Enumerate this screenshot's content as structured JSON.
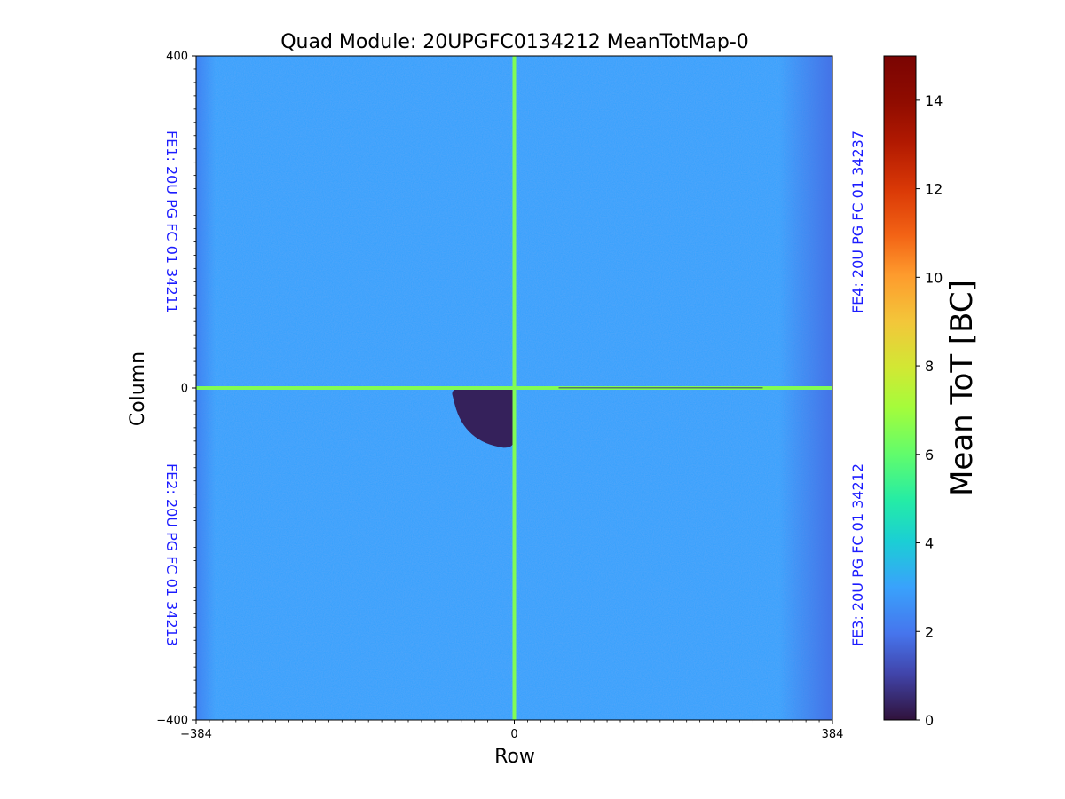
{
  "chart_data": {
    "type": "heatmap",
    "title": "Quad Module: 20UPGFC0134212 MeanTotMap-0",
    "xlabel": "Row",
    "ylabel": "Column",
    "xlim": [
      -384,
      384
    ],
    "ylim": [
      -400,
      400
    ],
    "x_ticks": [
      {
        "value": -384,
        "label": "−384"
      },
      {
        "value": 0,
        "label": "0"
      },
      {
        "value": 384,
        "label": "384"
      }
    ],
    "y_ticks": [
      {
        "value": 400,
        "label": "400"
      },
      {
        "value": 0,
        "label": "0"
      },
      {
        "value": -400,
        "label": "−400"
      }
    ],
    "colorbar": {
      "label": "Mean ToT [BC]",
      "range": [
        0,
        15
      ],
      "ticks": [
        {
          "value": 0,
          "label": "0"
        },
        {
          "value": 2,
          "label": "2"
        },
        {
          "value": 4,
          "label": "4"
        },
        {
          "value": 6,
          "label": "6"
        },
        {
          "value": 8,
          "label": "8"
        },
        {
          "value": 10,
          "label": "10"
        },
        {
          "value": 12,
          "label": "12"
        },
        {
          "value": 14,
          "label": "14"
        }
      ],
      "colormap": "turbo"
    },
    "background_value": 3.0,
    "chip_labels": [
      {
        "id": "fe1",
        "text": "FE1: 20U PG FC 01 34211",
        "side": "left",
        "quadrant": "top"
      },
      {
        "id": "fe2",
        "text": "FE2: 20U PG FC 01 34213",
        "side": "left",
        "quadrant": "bottom"
      },
      {
        "id": "fe3",
        "text": "FE3: 20U PG FC 01 34212",
        "side": "right",
        "quadrant": "bottom"
      },
      {
        "id": "fe4",
        "text": "FE4: 20U PG FC 01 34237",
        "side": "right",
        "quadrant": "top"
      }
    ],
    "boundary_lines": {
      "x": 0,
      "y": 0,
      "value": 6.5
    },
    "low_region": {
      "value": 0.3,
      "x_range": [
        -75,
        0
      ],
      "y_range": [
        -72,
        -1
      ]
    }
  }
}
